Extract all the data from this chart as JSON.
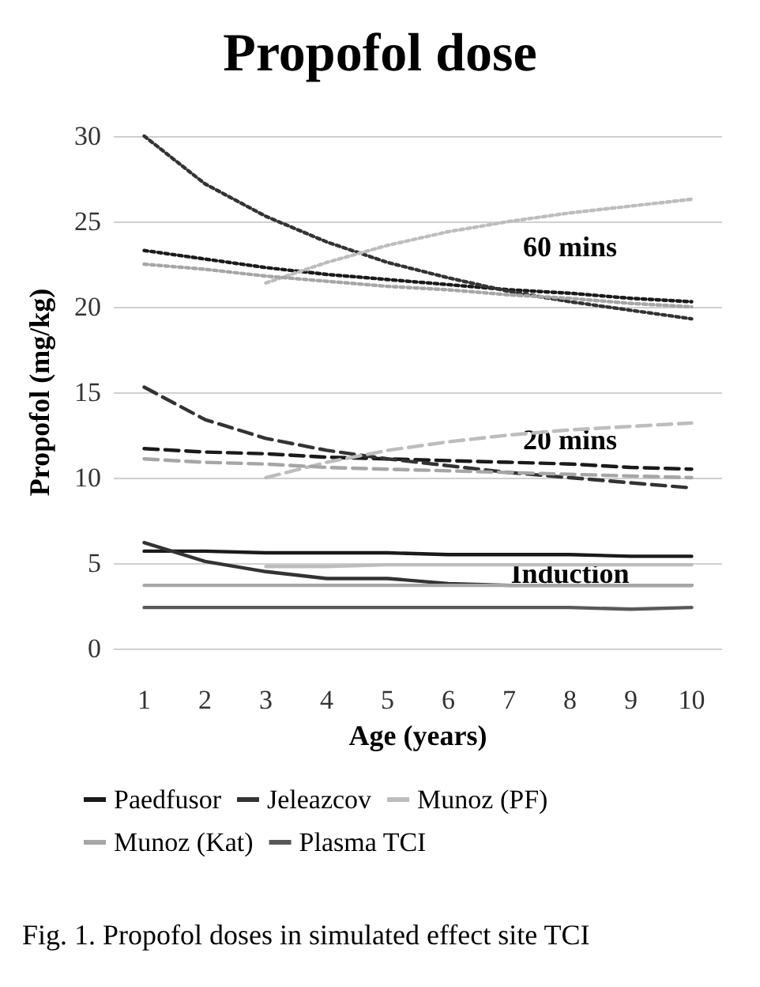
{
  "chart_data": {
    "type": "line",
    "title": "Propofol dose",
    "xlabel": "Age (years)",
    "ylabel": "Propofol (mg/kg)",
    "categories": [
      "1",
      "2",
      "3",
      "4",
      "5",
      "6",
      "7",
      "8",
      "9",
      "10"
    ],
    "ylim": [
      0,
      30
    ],
    "yticks": [
      0,
      5,
      10,
      15,
      20,
      25,
      30
    ],
    "grid": "y",
    "legend": "bottom",
    "marker": "none",
    "series": [
      {
        "name": "Paedfusor",
        "color": "#1a1a1a",
        "line_style": "solid",
        "values": [
          5.7,
          5.7,
          5.6,
          5.6,
          5.6,
          5.5,
          5.5,
          5.5,
          5.4,
          5.4
        ]
      },
      {
        "name": "Jeleazcov",
        "color": "#333333",
        "line_style": "solid",
        "values": [
          6.2,
          5.1,
          4.5,
          4.1,
          4.1,
          3.8,
          3.7,
          3.7,
          3.7,
          3.7
        ]
      },
      {
        "name": "Munoz (PF)",
        "color": "#bdbdbd",
        "line_style": "solid",
        "values": [
          null,
          null,
          4.8,
          4.8,
          4.9,
          4.9,
          4.9,
          4.9,
          4.9,
          4.9
        ]
      },
      {
        "name": "Munoz (Kat)",
        "color": "#a6a6a6",
        "line_style": "solid",
        "values": [
          3.7,
          3.7,
          3.7,
          3.7,
          3.7,
          3.7,
          3.7,
          3.7,
          3.7,
          3.7
        ]
      },
      {
        "name": "Plasma TCI",
        "color": "#595959",
        "line_style": "solid",
        "values": [
          2.4,
          2.4,
          2.4,
          2.4,
          2.4,
          2.4,
          2.4,
          2.4,
          2.3,
          2.4
        ]
      },
      {
        "color": "#1a1a1a",
        "line_style": "dashed",
        "values": [
          11.7,
          11.5,
          11.4,
          11.2,
          11.1,
          11.0,
          10.9,
          10.8,
          10.6,
          10.5
        ]
      },
      {
        "color": "#333333",
        "line_style": "dashed",
        "values": [
          15.3,
          13.4,
          12.3,
          11.6,
          11.1,
          10.7,
          10.3,
          10.0,
          9.7,
          9.4
        ]
      },
      {
        "color": "#bdbdbd",
        "line_style": "dashed",
        "values": [
          null,
          null,
          10.0,
          10.9,
          11.6,
          12.1,
          12.5,
          12.8,
          13.0,
          13.2
        ]
      },
      {
        "color": "#a6a6a6",
        "line_style": "dashed",
        "values": [
          11.1,
          10.9,
          10.8,
          10.6,
          10.5,
          10.4,
          10.3,
          10.2,
          10.1,
          10.0
        ]
      },
      {
        "color": "#1a1a1a",
        "line_style": "dotted",
        "values": [
          23.3,
          22.8,
          22.3,
          21.9,
          21.6,
          21.3,
          21.0,
          20.8,
          20.5,
          20.3
        ]
      },
      {
        "color": "#333333",
        "line_style": "dotted",
        "values": [
          30.0,
          27.2,
          25.3,
          23.8,
          22.6,
          21.7,
          20.9,
          20.3,
          19.8,
          19.3
        ]
      },
      {
        "color": "#bdbdbd",
        "line_style": "dotted",
        "values": [
          null,
          null,
          21.4,
          22.6,
          23.6,
          24.4,
          25.0,
          25.5,
          25.9,
          26.3
        ]
      },
      {
        "color": "#a6a6a6",
        "line_style": "dotted",
        "values": [
          22.5,
          22.2,
          21.8,
          21.5,
          21.2,
          21.0,
          20.7,
          20.5,
          20.2,
          20.0
        ]
      }
    ],
    "annotations": [
      "60 mins",
      "20 mins",
      "Induction",
      "Fig. 1. Propofol doses in simulated effect site TCI"
    ]
  }
}
